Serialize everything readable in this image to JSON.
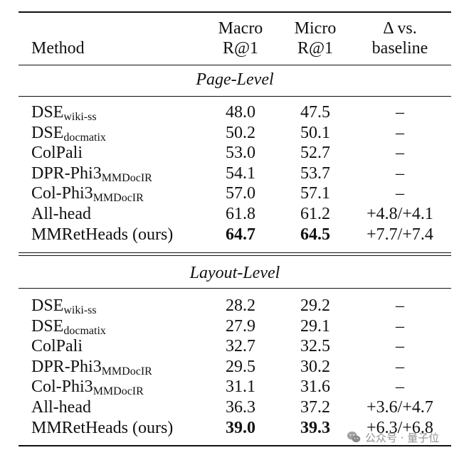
{
  "headers": {
    "method": "Method",
    "macro_line1": "Macro",
    "macro_line2": "R@1",
    "micro_line1": "Micro",
    "micro_line2": "R@1",
    "delta_line1": "Δ vs.",
    "delta_line2": "baseline"
  },
  "sections": [
    {
      "title": "Page-Level",
      "rows": [
        {
          "method": "DSE",
          "sub": "wiki-ss",
          "macro": "48.0",
          "micro": "47.5",
          "delta": "–",
          "bold": false
        },
        {
          "method": "DSE",
          "sub": "docmatix",
          "macro": "50.2",
          "micro": "50.1",
          "delta": "–",
          "bold": false
        },
        {
          "method": "ColPali",
          "sub": "",
          "macro": "53.0",
          "micro": "52.7",
          "delta": "–",
          "bold": false
        },
        {
          "method": "DPR-Phi3",
          "sub": "MMDocIR",
          "macro": "54.1",
          "micro": "53.7",
          "delta": "–",
          "bold": false
        },
        {
          "method": "Col-Phi3",
          "sub": "MMDocIR",
          "macro": "57.0",
          "micro": "57.1",
          "delta": "–",
          "bold": false
        },
        {
          "method": "All-head",
          "sub": "",
          "macro": "61.8",
          "micro": "61.2",
          "delta": "+4.8/+4.1",
          "bold": false
        },
        {
          "method": "MMRetHeads (ours)",
          "sub": "",
          "macro": "64.7",
          "micro": "64.5",
          "delta": "+7.7/+7.4",
          "bold": true
        }
      ]
    },
    {
      "title": "Layout-Level",
      "rows": [
        {
          "method": "DSE",
          "sub": "wiki-ss",
          "macro": "28.2",
          "micro": "29.2",
          "delta": "–",
          "bold": false
        },
        {
          "method": "DSE",
          "sub": "docmatix",
          "macro": "27.9",
          "micro": "29.1",
          "delta": "–",
          "bold": false
        },
        {
          "method": "ColPali",
          "sub": "",
          "macro": "32.7",
          "micro": "32.5",
          "delta": "–",
          "bold": false
        },
        {
          "method": "DPR-Phi3",
          "sub": "MMDocIR",
          "macro": "29.5",
          "micro": "30.2",
          "delta": "–",
          "bold": false
        },
        {
          "method": "Col-Phi3",
          "sub": "MMDocIR",
          "macro": "31.1",
          "micro": "31.6",
          "delta": "–",
          "bold": false
        },
        {
          "method": "All-head",
          "sub": "",
          "macro": "36.3",
          "micro": "37.2",
          "delta": "+3.6/+4.7",
          "bold": false
        },
        {
          "method": "MMRetHeads (ours)",
          "sub": "",
          "macro": "39.0",
          "micro": "39.3",
          "delta": "+6.3/+6.8",
          "bold": true
        }
      ]
    }
  ],
  "watermark": {
    "text": "公众号 · 量子位",
    "icon": "wechat-icon"
  }
}
